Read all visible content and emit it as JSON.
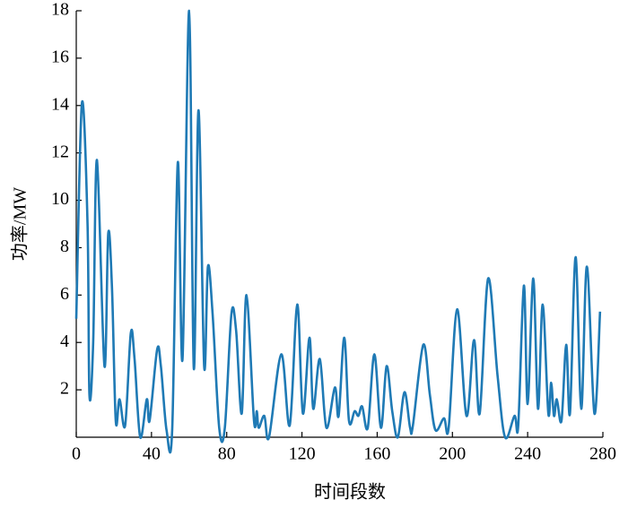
{
  "chart_data": {
    "type": "line",
    "x_label": "时间段数",
    "y_label": "功率/MW",
    "x": [
      0,
      3,
      6,
      7,
      9,
      11,
      15,
      17,
      19,
      21,
      23,
      26,
      29,
      31,
      34,
      37.5,
      39,
      43,
      45,
      48,
      51,
      54,
      56.5,
      60,
      62.5,
      65,
      68,
      70,
      72.5,
      76,
      79,
      82.5,
      85,
      88,
      90.5,
      94.5,
      96,
      97,
      100,
      102.5,
      109,
      113.5,
      117.5,
      120.5,
      124,
      126,
      129.5,
      133,
      137.5,
      139.5,
      142.5,
      145,
      148,
      150,
      152,
      155,
      158.5,
      162,
      165,
      168,
      171,
      174.5,
      177.5,
      179,
      184.5,
      188,
      191,
      195.5,
      198,
      202.5,
      207.5,
      211.5,
      214.5,
      219,
      224,
      228,
      233,
      235,
      238,
      240,
      243,
      245.5,
      248,
      251,
      252.5,
      254,
      255.5,
      258,
      260.5,
      262.5,
      265.5,
      268.5,
      271.5,
      275.5,
      278.5
    ],
    "series": [
      {
        "name": "功率",
        "color": "#1f7ab5",
        "values": [
          5.0,
          14.1,
          9,
          1.8,
          4,
          11.7,
          3,
          8.6,
          6.3,
          0.7,
          1.6,
          0.5,
          4.4,
          3.3,
          0,
          1.6,
          0.7,
          3.7,
          3,
          0.3,
          0.3,
          11.6,
          3.3,
          18,
          2.9,
          13.8,
          3,
          7.2,
          5.2,
          0.4,
          0.4,
          5.2,
          4.5,
          1,
          6,
          0.7,
          1.1,
          0.4,
          0.9,
          0,
          3.5,
          0.5,
          5.6,
          1,
          4.2,
          1.2,
          3.3,
          0.4,
          2.1,
          0.9,
          4.2,
          0.7,
          1.1,
          0.9,
          1.3,
          0.4,
          3.5,
          0.4,
          3,
          1.1,
          0,
          1.9,
          0.4,
          0.5,
          3.9,
          1.8,
          0.3,
          0.8,
          0.4,
          5.4,
          0.9,
          4.1,
          1,
          6.7,
          2.6,
          0,
          0.9,
          0.5,
          6.4,
          1.4,
          6.7,
          1.2,
          5.6,
          1,
          2.3,
          0.9,
          1.6,
          0.7,
          3.9,
          1,
          7.6,
          1.2,
          7.2,
          1,
          5.3
        ]
      }
    ],
    "xlim": [
      0,
      280
    ],
    "xticks": [
      0,
      40,
      80,
      120,
      160,
      200,
      240,
      280
    ],
    "ylim": [
      0,
      18
    ],
    "yticks": [
      2,
      4,
      6,
      8,
      10,
      12,
      14,
      16,
      18
    ]
  }
}
